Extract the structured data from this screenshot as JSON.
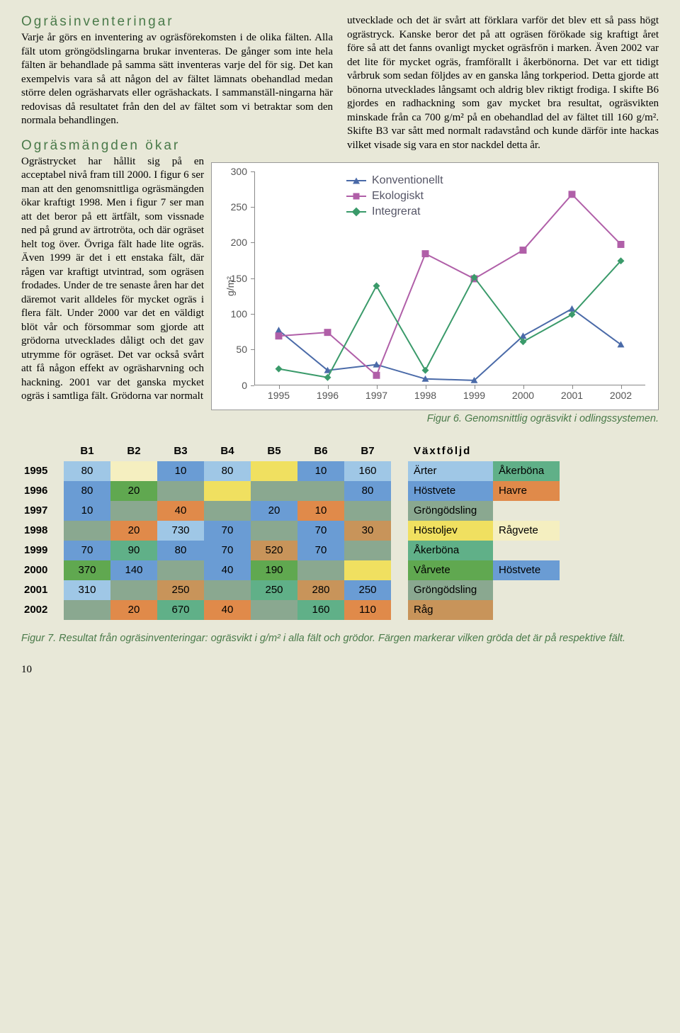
{
  "section1_title": "Ogräsinventeringar",
  "section1_p1": "Varje år görs en inventering av ogräsförekomsten i de olika fälten. Alla fält utom gröngödslingarna brukar inventeras. De gånger som inte hela fälten är behandlade på samma sätt inventeras varje del för sig. Det kan exempelvis vara så att någon del av fältet lämnats obehandlad medan större delen ogräsharvats eller ogräshackats. I sammanställ-ningarna här redovisas då resultatet från den del av fältet som vi betraktar som den normala behandlingen.",
  "section2_title": "Ogräsmängden ökar",
  "section2_p1": "Ogrästrycket har hållit sig på en acceptabel nivå fram till 2000. I figur 6 ser man att den genomsnittliga ogräsmängden ökar kraftigt 1998. Men i figur 7 ser man att det beror på ett ärtfält, som vissnade ned på grund av ärtrotröta, och där ogräset helt tog över. Övriga fält hade lite ogräs. Även 1999 är det i ett enstaka fält, där rågen var kraftigt utvintrad, som ogräsen frodades. Under de tre senaste åren har det däremot varit alldeles för mycket ogräs i flera fält. Under 2000 var det en väldigt blöt vår och försommar som gjorde att grödorna utvecklades dåligt och det gav utrymme för ogräset. Det var också svårt att få någon effekt av ogräsharvning och hackning. 2001 var det ganska mycket ogräs i samtliga fält. Grödorna var normalt",
  "col2_p1": "utvecklade och det är svårt att förklara varför det blev ett så pass högt ogrästryck. Kanske beror det på att ogräsen förökade sig kraftigt året före så att det fanns ovanligt mycket ogräsfrön i marken. Även 2002 var det lite för mycket ogräs, framförallt i åkerbönorna. Det var ett tidigt vårbruk som sedan följdes av en ganska lång torkperiod. Detta gjorde att bönorna utvecklades långsamt och aldrig blev riktigt frodiga. I skifte B6 gjordes en radhackning som gav mycket bra resultat, ogräsvikten minskade från ca 700 g/m² på en obehandlad del av fältet till 160 g/m². Skifte B3 var sått med normalt radavstånd och kunde därför inte hackas vilket visade sig vara en stor nackdel detta år.",
  "chart": {
    "ylabel": "g/m²",
    "ymin": 0,
    "ymax": 300,
    "yticks": [
      0,
      50,
      100,
      150,
      200,
      250,
      300
    ],
    "xcats": [
      "1995",
      "1996",
      "1997",
      "1998",
      "1999",
      "2000",
      "2001",
      "2002"
    ],
    "series": [
      {
        "name": "Konventionellt",
        "color": "#4a6aa8",
        "marker": "triangle",
        "values": [
          78,
          22,
          30,
          10,
          8,
          70,
          108,
          58
        ]
      },
      {
        "name": "Ekologiskt",
        "color": "#b05fa8",
        "marker": "square",
        "values": [
          70,
          75,
          15,
          185,
          150,
          190,
          268,
          198
        ]
      },
      {
        "name": "Integrerat",
        "color": "#3a9a6a",
        "marker": "diamond",
        "values": [
          24,
          12,
          140,
          22,
          152,
          62,
          100,
          175
        ]
      }
    ]
  },
  "caption6": "Figur 6. Genomsnittlig ogräsvikt i odlingssystemen.",
  "caption7": "Figur 7. Resultat från ogräsinventeringar: ogräsvikt i g/m² i alla fält och grödor. Färgen markerar vilken gröda det är på respektive fält.",
  "colors": {
    "arter": "#9fc7e6",
    "akerbona": "#60b088",
    "hostvete": "#6a9cd4",
    "havre": "#e08a4a",
    "grongodsling": "#8aa890",
    "hostoljev": "#f0e060",
    "ragvete": "#f5efc0",
    "varvete": "#60a850",
    "rag": "#c8945a",
    "blank": "#e8e8d8"
  },
  "btable": {
    "cols": [
      "B1",
      "B2",
      "B3",
      "B4",
      "B5",
      "B6",
      "B7"
    ],
    "rows": [
      {
        "year": "1995",
        "cells": [
          {
            "v": "80",
            "c": "arter"
          },
          {
            "v": "",
            "c": "ragvete"
          },
          {
            "v": "10",
            "c": "hostvete"
          },
          {
            "v": "80",
            "c": "arter"
          },
          {
            "v": "",
            "c": "hostoljev"
          },
          {
            "v": "10",
            "c": "hostvete"
          },
          {
            "v": "160",
            "c": "arter"
          }
        ]
      },
      {
        "year": "1996",
        "cells": [
          {
            "v": "80",
            "c": "hostvete"
          },
          {
            "v": "20",
            "c": "varvete"
          },
          {
            "v": "",
            "c": "grongodsling"
          },
          {
            "v": "",
            "c": "hostoljev"
          },
          {
            "v": "",
            "c": "grongodsling"
          },
          {
            "v": "",
            "c": "grongodsling"
          },
          {
            "v": "80",
            "c": "hostvete"
          }
        ]
      },
      {
        "year": "1997",
        "cells": [
          {
            "v": "10",
            "c": "hostvete"
          },
          {
            "v": "",
            "c": "grongodsling"
          },
          {
            "v": "40",
            "c": "havre"
          },
          {
            "v": "",
            "c": "grongodsling"
          },
          {
            "v": "20",
            "c": "hostvete"
          },
          {
            "v": "10",
            "c": "havre"
          },
          {
            "v": "",
            "c": "grongodsling"
          }
        ]
      },
      {
        "year": "1998",
        "cells": [
          {
            "v": "",
            "c": "grongodsling"
          },
          {
            "v": "20",
            "c": "havre"
          },
          {
            "v": "730",
            "c": "arter"
          },
          {
            "v": "70",
            "c": "hostvete"
          },
          {
            "v": "",
            "c": "grongodsling"
          },
          {
            "v": "70",
            "c": "hostvete"
          },
          {
            "v": "30",
            "c": "rag"
          }
        ]
      },
      {
        "year": "1999",
        "cells": [
          {
            "v": "70",
            "c": "hostvete"
          },
          {
            "v": "90",
            "c": "akerbona"
          },
          {
            "v": "80",
            "c": "hostvete"
          },
          {
            "v": "70",
            "c": "hostvete"
          },
          {
            "v": "520",
            "c": "rag"
          },
          {
            "v": "70",
            "c": "hostvete"
          },
          {
            "v": "",
            "c": "grongodsling"
          }
        ]
      },
      {
        "year": "2000",
        "cells": [
          {
            "v": "370",
            "c": "varvete"
          },
          {
            "v": "140",
            "c": "hostvete"
          },
          {
            "v": "",
            "c": "grongodsling"
          },
          {
            "v": "40",
            "c": "hostvete"
          },
          {
            "v": "190",
            "c": "varvete"
          },
          {
            "v": "",
            "c": "grongodsling"
          },
          {
            "v": "",
            "c": "hostoljev"
          }
        ]
      },
      {
        "year": "2001",
        "cells": [
          {
            "v": "310",
            "c": "arter"
          },
          {
            "v": "",
            "c": "grongodsling"
          },
          {
            "v": "250",
            "c": "rag"
          },
          {
            "v": "",
            "c": "grongodsling"
          },
          {
            "v": "250",
            "c": "akerbona"
          },
          {
            "v": "280",
            "c": "rag"
          },
          {
            "v": "250",
            "c": "hostvete"
          }
        ]
      },
      {
        "year": "2002",
        "cells": [
          {
            "v": "",
            "c": "grongodsling"
          },
          {
            "v": "20",
            "c": "havre"
          },
          {
            "v": "670",
            "c": "akerbona"
          },
          {
            "v": "40",
            "c": "havre"
          },
          {
            "v": "",
            "c": "grongodsling"
          },
          {
            "v": "160",
            "c": "akerbona"
          },
          {
            "v": "110",
            "c": "havre"
          }
        ]
      }
    ]
  },
  "ltable": {
    "header": "Växtföljd",
    "rows": [
      [
        {
          "t": "Ärter",
          "c": "arter"
        },
        {
          "t": "Åkerböna",
          "c": "akerbona"
        }
      ],
      [
        {
          "t": "Höstvete",
          "c": "hostvete"
        },
        {
          "t": "Havre",
          "c": "havre"
        }
      ],
      [
        {
          "t": "Gröngödsling",
          "c": "grongodsling"
        },
        {
          "t": "",
          "c": "blank"
        }
      ],
      [
        {
          "t": "Höstoljev",
          "c": "hostoljev"
        },
        {
          "t": "Rågvete",
          "c": "ragvete"
        }
      ],
      [
        {
          "t": "Åkerböna",
          "c": "akerbona"
        },
        {
          "t": "",
          "c": "blank"
        }
      ],
      [
        {
          "t": "Vårvete",
          "c": "varvete"
        },
        {
          "t": "Höstvete",
          "c": "hostvete"
        }
      ],
      [
        {
          "t": "Gröngödsling",
          "c": "grongodsling"
        },
        {
          "t": "",
          "c": "blank"
        }
      ],
      [
        {
          "t": "Råg",
          "c": "rag"
        },
        {
          "t": "",
          "c": "blank"
        }
      ]
    ]
  },
  "page_no": "10"
}
